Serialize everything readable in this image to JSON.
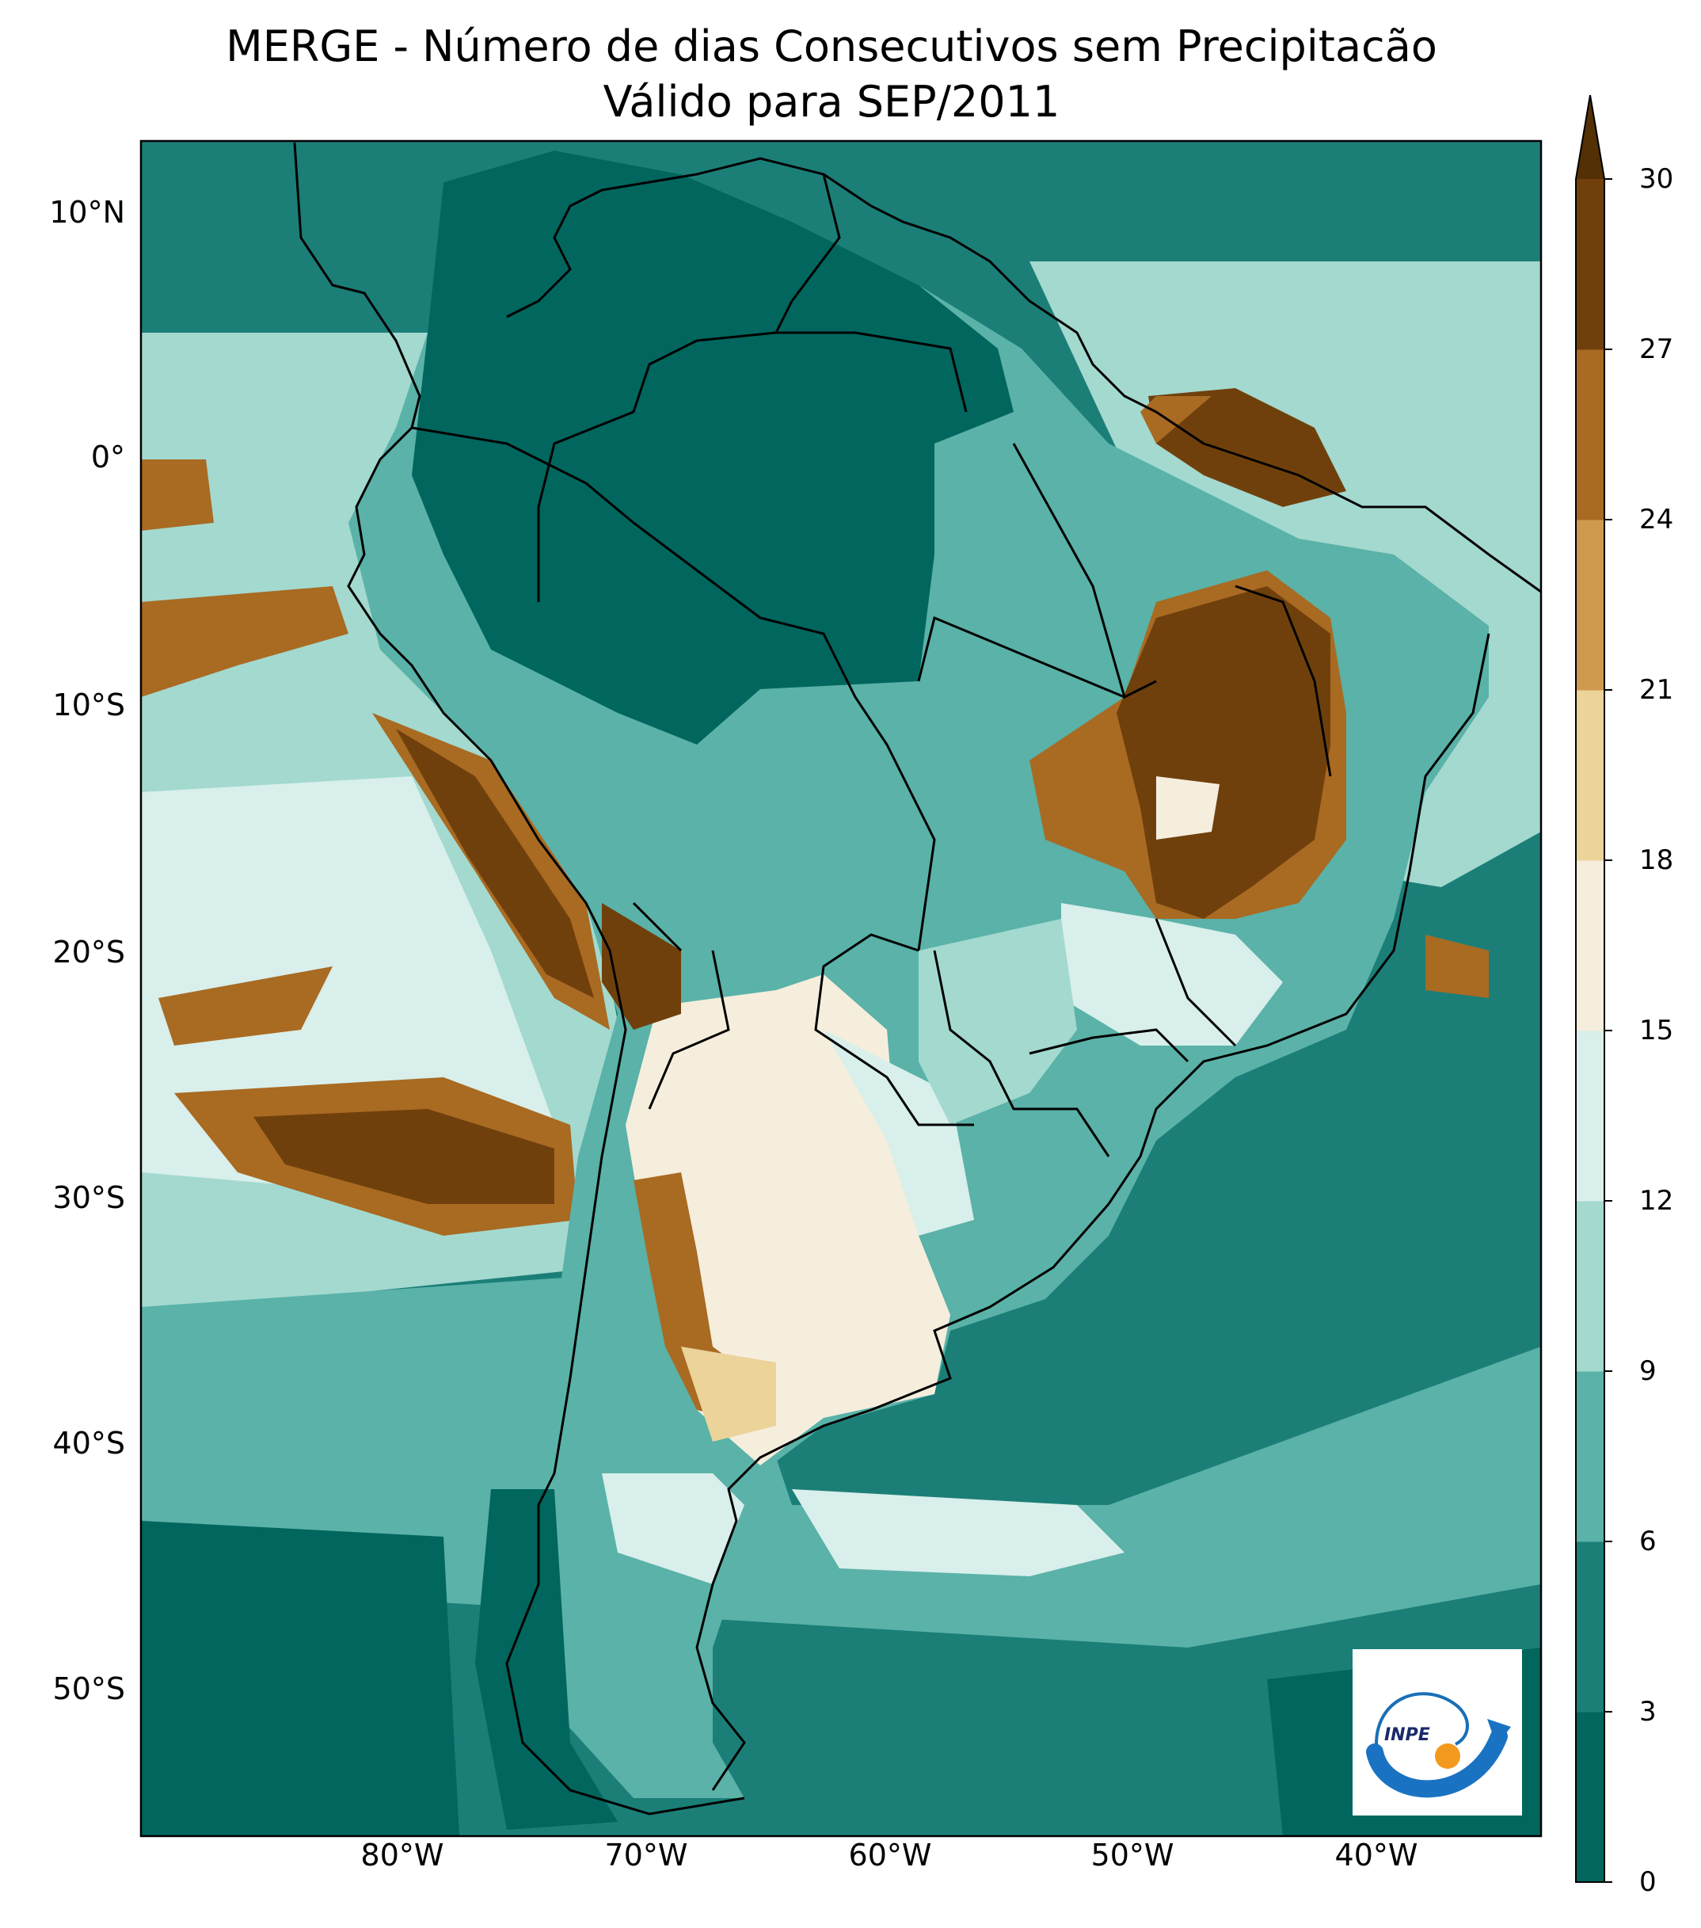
{
  "title": {
    "line1": "MERGE - Número de dias Consecutivos sem Precipitacão",
    "line2": "Válido para SEP/2011"
  },
  "axes": {
    "lat_ticks": [
      "10°N",
      "0°",
      "10°S",
      "20°S",
      "30°S",
      "40°S",
      "50°S"
    ],
    "lon_ticks": [
      "80°W",
      "70°W",
      "60°W",
      "50°W",
      "40°W"
    ]
  },
  "colorbar": {
    "ticks": [
      "0",
      "3",
      "6",
      "9",
      "12",
      "15",
      "18",
      "21",
      "24",
      "27",
      "30"
    ],
    "colors": [
      "#01665e",
      "#1b7f78",
      "#5ab2a8",
      "#a3d9cf",
      "#d8efeb",
      "#f5eedd",
      "#ebd39a",
      "#cf9a4e",
      "#a96a22",
      "#70400c"
    ],
    "extend_color": "#543005"
  },
  "logo": {
    "text": "INPE",
    "icon": "inpe-logo-icon"
  },
  "map_colors": {
    "ocean_base": "#1b7f78",
    "amazon": "#01665e",
    "land_light": "#5ab2a8",
    "argentina": "#f5eedd",
    "dry_ne": "#70400c",
    "dry_ne_border": "#a96a22",
    "pacific_band": "#a3d9cf",
    "pacific_light": "#d8efeb"
  }
}
